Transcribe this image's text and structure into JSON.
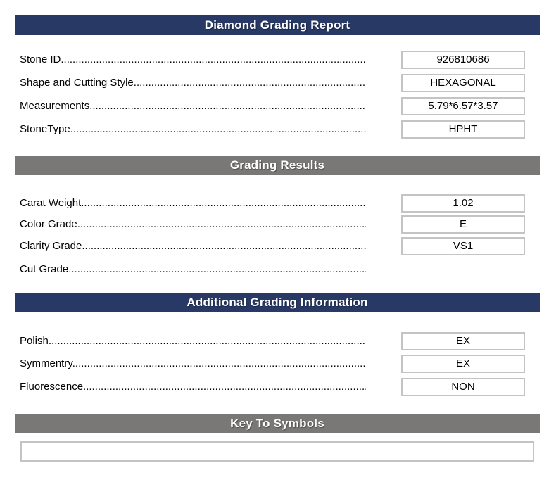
{
  "report_header": {
    "title": "Diamond Grading Report"
  },
  "identification": {
    "rows": [
      {
        "label": "Stone ID",
        "value": "926810686"
      },
      {
        "label": "Shape and Cutting Style",
        "value": "HEXAGONAL"
      },
      {
        "label": "Measurements",
        "value": "5.79*6.57*3.57"
      },
      {
        "label": "StoneType",
        "value": "HPHT"
      }
    ]
  },
  "grading_results": {
    "title": "Grading Results",
    "rows": [
      {
        "label": "Carat Weight",
        "value": "1.02"
      },
      {
        "label": "Color Grade",
        "value": "E"
      },
      {
        "label": "Clarity Grade",
        "value": "VS1"
      },
      {
        "label": "Cut Grade",
        "value": ""
      }
    ]
  },
  "additional_grading": {
    "title": "Additional Grading Information",
    "rows": [
      {
        "label": "Polish",
        "value": "EX"
      },
      {
        "label": "Symmentry",
        "value": "EX"
      },
      {
        "label": "Fluorescence",
        "value": "NON"
      }
    ]
  },
  "key_to_symbols": {
    "title": "Key To Symbols",
    "content": ""
  },
  "leader_dots": "........................................................................................................................................................................",
  "colors": {
    "header_navy": "#283965",
    "header_gray": "#7A7877",
    "header_text": "#FFFFFF",
    "box_border": "#C4C4C4",
    "label_text": "#000000"
  }
}
